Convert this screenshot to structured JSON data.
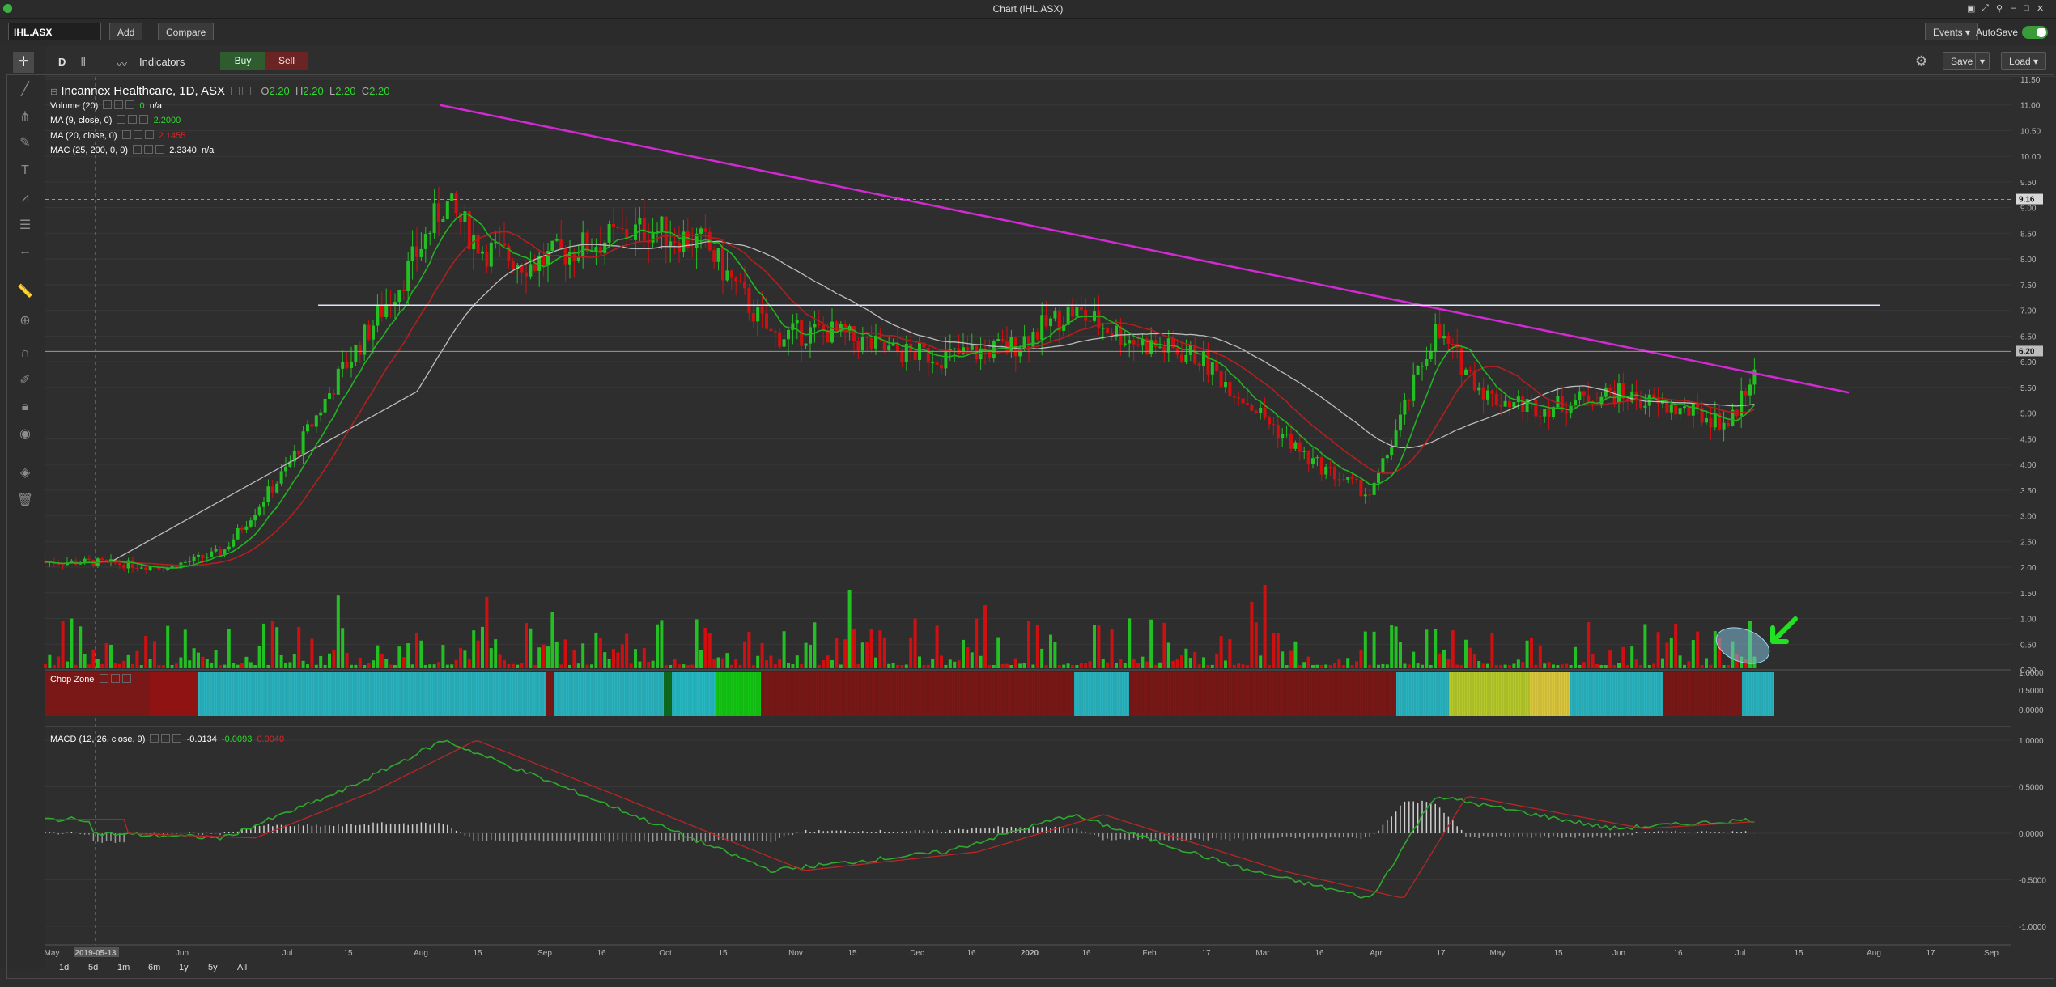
{
  "window": {
    "title": "Chart (IHL.ASX)"
  },
  "toolbar": {
    "symbol": "IHL.ASX",
    "add_label": "Add",
    "compare_label": "Compare",
    "events_label": "Events",
    "autosave_label": "AutoSave",
    "autosave_on": true
  },
  "chart_toolbar": {
    "interval": "D",
    "indicators_label": "Indicators",
    "buy_label": "Buy",
    "sell_label": "Sell",
    "save_label": "Save",
    "load_label": "Load"
  },
  "legend": {
    "instrument": "Incannex Healthcare, 1D, ASX",
    "o_label": "O",
    "o": "2.20",
    "h_label": "H",
    "h": "2.20",
    "l_label": "L",
    "l": "2.20",
    "c_label": "C",
    "c": "2.20",
    "volume": {
      "name": "Volume (20)",
      "v1": "0",
      "v2": "n/a"
    },
    "ma9": {
      "name": "MA (9, close, 0)",
      "value": "2.2000"
    },
    "ma20": {
      "name": "MA (20, close, 0)",
      "value": "2.1455"
    },
    "mac": {
      "name": "MAC (25, 200, 0, 0)",
      "v1": "2.3340",
      "v2": "n/a"
    },
    "chop": {
      "name": "Chop Zone"
    },
    "macd": {
      "name": "MACD (12, 26, close, 9)",
      "v1": "-0.0134",
      "v2": "-0.0093",
      "v3": "0.0040"
    }
  },
  "colors": {
    "bg": "#2e2e2e",
    "up": "#22c022",
    "down": "#d01010",
    "ma9": "#21b321",
    "ma20": "#b21f1f",
    "ma_slow": "#bcbcbc",
    "trendline": "#d22ad2",
    "hline": "#dde6ff",
    "macd": "#2ea82e",
    "signal": "#b82626",
    "arrow": "#22e022"
  },
  "price_axis": {
    "labels": [
      "11.50",
      "11.00",
      "10.50",
      "10.00",
      "9.50",
      "9.00",
      "8.50",
      "8.00",
      "7.50",
      "7.00",
      "6.50",
      "6.00",
      "5.50",
      "5.00",
      "4.50",
      "4.00",
      "3.50",
      "3.00",
      "2.50",
      "2.00",
      "1.50",
      "1.00",
      "0.50",
      "0.00"
    ],
    "current_label": "9.16",
    "last_label": "6.20"
  },
  "chop_axis": {
    "labels": [
      "1.0000",
      "0.5000",
      "0.0000"
    ]
  },
  "macd_axis": {
    "labels": [
      "1.0000",
      "0.5000",
      "0.0000",
      "-0.5000",
      "-1.0000"
    ]
  },
  "time_axis": {
    "labels": [
      "May",
      "2019-05-13",
      "Jun",
      "Jul",
      "15",
      "Aug",
      "15",
      "Sep",
      "16",
      "Oct",
      "15",
      "Nov",
      "15",
      "Dec",
      "16",
      "2020",
      "16",
      "Feb",
      "17",
      "Mar",
      "16",
      "Apr",
      "17",
      "May",
      "15",
      "Jun",
      "16",
      "Jul",
      "15",
      "Aug",
      "17",
      "Sep"
    ]
  },
  "timeframes": [
    "1d",
    "5d",
    "1m",
    "6m",
    "1y",
    "5y",
    "All"
  ],
  "chart_data": {
    "type": "candlestick",
    "title": "Incannex Healthcare, 1D, ASX",
    "y_axis": "price",
    "ylim": [
      0,
      11.5
    ],
    "grid": true,
    "x_range": [
      "2019-05",
      "2020-09"
    ],
    "trendline": {
      "from": [
        "2019-08-09",
        11.0
      ],
      "to": [
        "2020-07-31",
        5.4
      ]
    },
    "horizontal_line": 7.1,
    "crosshair_price": 9.16,
    "last_price_line": 6.2,
    "close_series": [
      [
        "2019-05-13",
        2.1
      ],
      [
        "2019-06-01",
        2.0
      ],
      [
        "2019-06-15",
        2.3
      ],
      [
        "2019-07-01",
        3.9
      ],
      [
        "2019-07-15",
        5.8
      ],
      [
        "2019-08-01",
        7.8
      ],
      [
        "2019-08-10",
        9.1
      ],
      [
        "2019-08-20",
        8.2
      ],
      [
        "2019-09-01",
        7.9
      ],
      [
        "2019-09-16",
        8.3
      ],
      [
        "2019-10-01",
        8.6
      ],
      [
        "2019-10-15",
        8.3
      ],
      [
        "2019-11-01",
        6.5
      ],
      [
        "2019-11-15",
        6.6
      ],
      [
        "2019-12-01",
        6.2
      ],
      [
        "2019-12-16",
        6.1
      ],
      [
        "2020-01-01",
        6.3
      ],
      [
        "2020-01-16",
        7.0
      ],
      [
        "2020-02-01",
        6.4
      ],
      [
        "2020-02-17",
        6.1
      ],
      [
        "2020-03-01",
        5.2
      ],
      [
        "2020-03-16",
        4.1
      ],
      [
        "2020-04-01",
        3.4
      ],
      [
        "2020-04-17",
        6.6
      ],
      [
        "2020-05-01",
        5.3
      ],
      [
        "2020-05-15",
        5.1
      ],
      [
        "2020-06-01",
        5.4
      ],
      [
        "2020-06-16",
        5.1
      ],
      [
        "2020-07-01",
        4.8
      ],
      [
        "2020-07-08",
        6.1
      ]
    ],
    "macd_series": [
      [
        "2019-05-13",
        0.0
      ],
      [
        "2019-06-15",
        -0.05
      ],
      [
        "2019-07-15",
        0.45
      ],
      [
        "2019-08-10",
        1.0
      ],
      [
        "2019-09-15",
        0.4
      ],
      [
        "2019-11-01",
        -0.4
      ],
      [
        "2019-12-15",
        -0.2
      ],
      [
        "2020-01-16",
        0.2
      ],
      [
        "2020-03-01",
        -0.4
      ],
      [
        "2020-04-01",
        -0.7
      ],
      [
        "2020-04-17",
        0.4
      ],
      [
        "2020-06-01",
        0.05
      ],
      [
        "2020-07-08",
        0.15
      ]
    ]
  }
}
